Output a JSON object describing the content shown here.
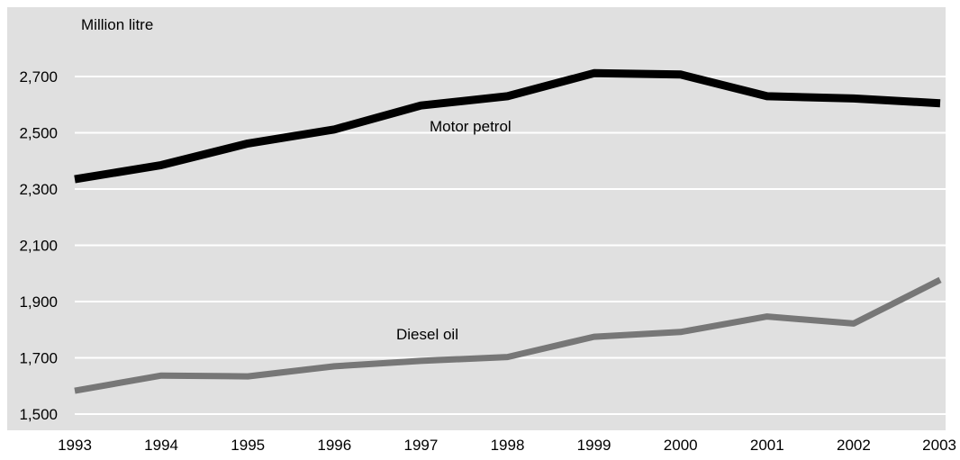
{
  "chart_data": {
    "type": "line",
    "ylabel": "Million litre",
    "x": [
      "1993",
      "1994",
      "1995",
      "1996",
      "1997",
      "1998",
      "1999",
      "2000",
      "2001",
      "2002",
      "2003"
    ],
    "ylim": [
      1500,
      2850
    ],
    "yticks": [
      "1,500",
      "1,700",
      "1,900",
      "2,100",
      "2,300",
      "2,500",
      "2,700"
    ],
    "ytick_values": [
      1500,
      1700,
      1900,
      2100,
      2300,
      2500,
      2700
    ],
    "grid": true,
    "legend": "none (series labeled inline)",
    "series": [
      {
        "name": "Motor petrol",
        "color": "#000000",
        "values": [
          2335,
          2385,
          2462,
          2512,
          2597,
          2630,
          2712,
          2707,
          2630,
          2622,
          2605
        ]
      },
      {
        "name": "Diesel oil",
        "color": "#777777",
        "values": [
          1583,
          1637,
          1634,
          1670,
          1689,
          1703,
          1775,
          1792,
          1847,
          1822,
          1977
        ]
      }
    ],
    "colors": {
      "plot_background": "#e0e0e0",
      "gridline": "#ffffff"
    }
  }
}
